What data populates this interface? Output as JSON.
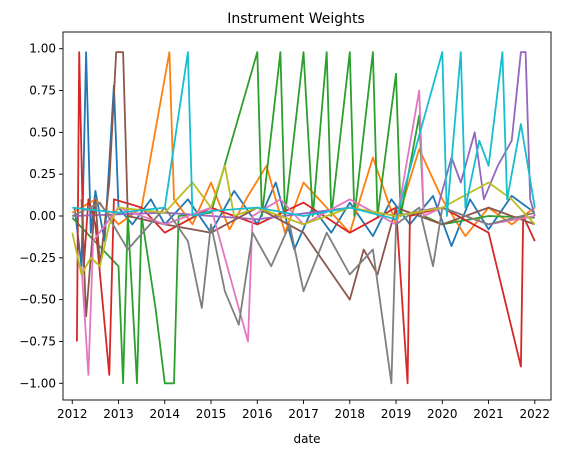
{
  "chart_data": {
    "type": "line",
    "title": "Instrument Weights",
    "xlabel": "date",
    "ylabel": "",
    "xlim": [
      2011.8,
      2022.35
    ],
    "ylim": [
      -1.1,
      1.1
    ],
    "x_ticks": [
      {
        "value": 2012,
        "label": "2012"
      },
      {
        "value": 2013,
        "label": "2013"
      },
      {
        "value": 2014,
        "label": "2014"
      },
      {
        "value": 2015,
        "label": "2015"
      },
      {
        "value": 2016,
        "label": "2016"
      },
      {
        "value": 2017,
        "label": "2017"
      },
      {
        "value": 2018,
        "label": "2018"
      },
      {
        "value": 2019,
        "label": "2019"
      },
      {
        "value": 2020,
        "label": "2020"
      },
      {
        "value": 2021,
        "label": "2021"
      },
      {
        "value": 2022,
        "label": "2022"
      }
    ],
    "y_ticks": [
      {
        "value": 1.0,
        "label": "1.00"
      },
      {
        "value": 0.75,
        "label": "0.75"
      },
      {
        "value": 0.5,
        "label": "0.50"
      },
      {
        "value": 0.25,
        "label": "0.25"
      },
      {
        "value": 0.0,
        "label": "0.00"
      },
      {
        "value": -0.25,
        "label": "−0.25"
      },
      {
        "value": -0.5,
        "label": "−0.50"
      },
      {
        "value": -0.75,
        "label": "−0.75"
      },
      {
        "value": -1.0,
        "label": "−1.00"
      }
    ],
    "grid": false,
    "legend": "none",
    "series": [
      {
        "color": "#1f77b4",
        "points": [
          [
            2012.05,
            0.05
          ],
          [
            2012.2,
            -0.3
          ],
          [
            2012.3,
            0.98
          ],
          [
            2012.4,
            -0.1
          ],
          [
            2012.5,
            0.15
          ],
          [
            2012.7,
            -0.15
          ],
          [
            2012.9,
            0.78
          ],
          [
            2013.0,
            0.05
          ],
          [
            2013.3,
            -0.05
          ],
          [
            2013.7,
            0.1
          ],
          [
            2014.0,
            -0.05
          ],
          [
            2014.5,
            0.1
          ],
          [
            2015.0,
            -0.1
          ],
          [
            2015.5,
            0.15
          ],
          [
            2016.0,
            -0.05
          ],
          [
            2016.4,
            0.2
          ],
          [
            2016.8,
            -0.2
          ],
          [
            2017.2,
            0.05
          ],
          [
            2017.6,
            -0.1
          ],
          [
            2018.0,
            0.08
          ],
          [
            2018.5,
            -0.12
          ],
          [
            2018.9,
            0.1
          ],
          [
            2019.3,
            -0.05
          ],
          [
            2019.8,
            0.12
          ],
          [
            2020.2,
            -0.18
          ],
          [
            2020.6,
            0.1
          ],
          [
            2021.0,
            -0.08
          ],
          [
            2021.5,
            0.12
          ],
          [
            2022.0,
            0.02
          ]
        ]
      },
      {
        "color": "#ff7f0e",
        "points": [
          [
            2012.0,
            0.02
          ],
          [
            2012.5,
            0.1
          ],
          [
            2013.0,
            -0.05
          ],
          [
            2013.5,
            0.05
          ],
          [
            2014.1,
            0.98
          ],
          [
            2014.2,
            0.1
          ],
          [
            2014.6,
            -0.05
          ],
          [
            2015.0,
            0.2
          ],
          [
            2015.4,
            -0.08
          ],
          [
            2015.8,
            0.12
          ],
          [
            2016.2,
            0.3
          ],
          [
            2016.6,
            -0.1
          ],
          [
            2017.0,
            0.2
          ],
          [
            2017.5,
            0.05
          ],
          [
            2018.0,
            -0.1
          ],
          [
            2018.5,
            0.35
          ],
          [
            2019.0,
            -0.05
          ],
          [
            2019.5,
            0.4
          ],
          [
            2020.0,
            0.1
          ],
          [
            2020.5,
            -0.12
          ],
          [
            2021.0,
            0.05
          ],
          [
            2021.5,
            -0.05
          ],
          [
            2022.0,
            0.05
          ]
        ]
      },
      {
        "color": "#2ca02c",
        "points": [
          [
            2012.0,
            -0.01
          ],
          [
            2013.0,
            -0.3
          ],
          [
            2013.1,
            -1.0
          ],
          [
            2013.2,
            0.0
          ],
          [
            2013.4,
            -1.0
          ],
          [
            2013.5,
            0.0
          ],
          [
            2013.8,
            -0.55
          ],
          [
            2014.0,
            -1.0
          ],
          [
            2014.2,
            -1.0
          ],
          [
            2014.3,
            0.0
          ],
          [
            2015.0,
            0.02
          ],
          [
            2016.0,
            0.98
          ],
          [
            2016.1,
            0.0
          ],
          [
            2016.5,
            0.98
          ],
          [
            2016.6,
            0.0
          ],
          [
            2017.0,
            0.98
          ],
          [
            2017.2,
            0.0
          ],
          [
            2017.5,
            0.98
          ],
          [
            2017.6,
            0.0
          ],
          [
            2018.0,
            0.98
          ],
          [
            2018.1,
            0.0
          ],
          [
            2018.5,
            0.98
          ],
          [
            2018.6,
            0.0
          ],
          [
            2019.0,
            0.85
          ],
          [
            2019.1,
            0.0
          ],
          [
            2019.5,
            0.6
          ],
          [
            2019.6,
            0.0
          ],
          [
            2020.0,
            -0.05
          ],
          [
            2021.0,
            0.0
          ],
          [
            2022.0,
            -0.01
          ]
        ]
      },
      {
        "color": "#d62728",
        "points": [
          [
            2012.1,
            -0.75
          ],
          [
            2012.15,
            0.98
          ],
          [
            2012.25,
            -0.3
          ],
          [
            2012.35,
            0.1
          ],
          [
            2012.5,
            -0.05
          ],
          [
            2012.8,
            -0.95
          ],
          [
            2012.9,
            0.1
          ],
          [
            2013.5,
            0.05
          ],
          [
            2014.0,
            -0.1
          ],
          [
            2015.0,
            0.05
          ],
          [
            2016.0,
            -0.05
          ],
          [
            2017.0,
            0.08
          ],
          [
            2018.0,
            -0.1
          ],
          [
            2019.0,
            0.05
          ],
          [
            2019.25,
            -1.0
          ],
          [
            2019.3,
            0.0
          ],
          [
            2020.0,
            0.05
          ],
          [
            2021.0,
            -0.1
          ],
          [
            2021.7,
            -0.9
          ],
          [
            2021.75,
            0.0
          ],
          [
            2022.0,
            -0.15
          ]
        ]
      },
      {
        "color": "#9467bd",
        "points": [
          [
            2012.0,
            0.0
          ],
          [
            2014.0,
            0.02
          ],
          [
            2016.0,
            -0.02
          ],
          [
            2018.0,
            0.05
          ],
          [
            2019.0,
            0.0
          ],
          [
            2019.9,
            0.05
          ],
          [
            2020.2,
            0.35
          ],
          [
            2020.4,
            0.2
          ],
          [
            2020.7,
            0.5
          ],
          [
            2020.9,
            0.1
          ],
          [
            2021.2,
            0.3
          ],
          [
            2021.5,
            0.45
          ],
          [
            2021.7,
            0.98
          ],
          [
            2021.8,
            0.98
          ],
          [
            2021.9,
            0.1
          ],
          [
            2022.0,
            0.0
          ]
        ]
      },
      {
        "color": "#8c564b",
        "points": [
          [
            2012.2,
            0.1
          ],
          [
            2012.3,
            -0.6
          ],
          [
            2012.5,
            0.1
          ],
          [
            2012.6,
            -0.3
          ],
          [
            2012.8,
            0.2
          ],
          [
            2012.95,
            0.98
          ],
          [
            2013.1,
            0.98
          ],
          [
            2013.2,
            0.0
          ],
          [
            2014.0,
            -0.05
          ],
          [
            2015.0,
            -0.1
          ],
          [
            2016.0,
            0.05
          ],
          [
            2017.0,
            -0.1
          ],
          [
            2018.0,
            -0.5
          ],
          [
            2018.3,
            -0.2
          ],
          [
            2018.6,
            -0.35
          ],
          [
            2019.0,
            0.05
          ],
          [
            2020.0,
            -0.05
          ],
          [
            2021.0,
            0.05
          ],
          [
            2022.0,
            -0.05
          ]
        ]
      },
      {
        "color": "#e377c2",
        "points": [
          [
            2012.2,
            -0.3
          ],
          [
            2012.35,
            -0.95
          ],
          [
            2012.45,
            -0.15
          ],
          [
            2013.0,
            0.05
          ],
          [
            2014.0,
            -0.05
          ],
          [
            2015.0,
            0.05
          ],
          [
            2015.8,
            -0.75
          ],
          [
            2015.9,
            0.0
          ],
          [
            2016.5,
            0.1
          ],
          [
            2017.0,
            -0.05
          ],
          [
            2018.0,
            0.1
          ],
          [
            2019.0,
            -0.05
          ],
          [
            2019.5,
            0.75
          ],
          [
            2019.6,
            0.0
          ],
          [
            2020.0,
            0.05
          ],
          [
            2021.0,
            -0.05
          ],
          [
            2022.0,
            0.0
          ]
        ]
      },
      {
        "color": "#7f7f7f",
        "points": [
          [
            2012.0,
            0.0
          ],
          [
            2012.6,
            0.08
          ],
          [
            2013.2,
            -0.2
          ],
          [
            2014.0,
            0.05
          ],
          [
            2014.5,
            -0.15
          ],
          [
            2014.8,
            -0.55
          ],
          [
            2015.0,
            -0.05
          ],
          [
            2015.3,
            -0.45
          ],
          [
            2015.6,
            -0.65
          ],
          [
            2015.9,
            -0.1
          ],
          [
            2016.3,
            -0.3
          ],
          [
            2016.7,
            -0.05
          ],
          [
            2017.0,
            -0.45
          ],
          [
            2017.5,
            -0.1
          ],
          [
            2018.0,
            -0.35
          ],
          [
            2018.5,
            -0.2
          ],
          [
            2018.9,
            -1.0
          ],
          [
            2019.0,
            -0.05
          ],
          [
            2019.5,
            0.05
          ],
          [
            2019.8,
            -0.3
          ],
          [
            2020.0,
            0.05
          ],
          [
            2021.0,
            -0.05
          ],
          [
            2022.0,
            0.02
          ]
        ]
      },
      {
        "color": "#bcbd22",
        "points": [
          [
            2012.0,
            -0.1
          ],
          [
            2012.2,
            -0.35
          ],
          [
            2012.4,
            -0.25
          ],
          [
            2012.6,
            -0.3
          ],
          [
            2012.8,
            -0.05
          ],
          [
            2013.0,
            0.05
          ],
          [
            2014.0,
            0.02
          ],
          [
            2014.6,
            0.2
          ],
          [
            2015.0,
            0.05
          ],
          [
            2015.3,
            0.3
          ],
          [
            2015.5,
            0.0
          ],
          [
            2016.0,
            0.05
          ],
          [
            2017.0,
            -0.05
          ],
          [
            2018.0,
            0.05
          ],
          [
            2019.0,
            0.0
          ],
          [
            2020.0,
            0.05
          ],
          [
            2021.0,
            0.2
          ],
          [
            2021.5,
            0.1
          ],
          [
            2022.0,
            -0.05
          ]
        ]
      },
      {
        "color": "#17becf",
        "points": [
          [
            2012.0,
            0.05
          ],
          [
            2013.0,
            0.02
          ],
          [
            2014.0,
            0.05
          ],
          [
            2014.5,
            0.98
          ],
          [
            2014.6,
            0.0
          ],
          [
            2015.0,
            0.03
          ],
          [
            2016.0,
            0.05
          ],
          [
            2017.0,
            0.0
          ],
          [
            2018.0,
            0.05
          ],
          [
            2019.0,
            -0.02
          ],
          [
            2020.0,
            0.98
          ],
          [
            2020.1,
            0.0
          ],
          [
            2020.4,
            0.98
          ],
          [
            2020.5,
            0.05
          ],
          [
            2020.8,
            0.45
          ],
          [
            2021.0,
            0.3
          ],
          [
            2021.3,
            0.98
          ],
          [
            2021.4,
            0.1
          ],
          [
            2021.7,
            0.55
          ],
          [
            2022.0,
            0.05
          ]
        ]
      }
    ]
  }
}
